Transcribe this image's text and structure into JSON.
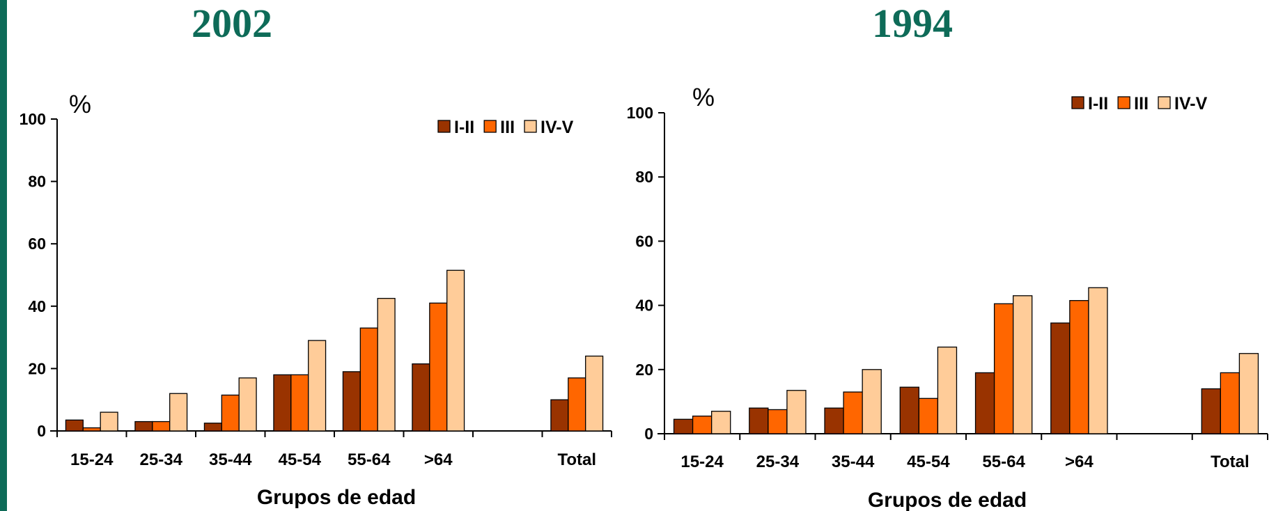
{
  "chart_data": [
    {
      "type": "bar",
      "title": "2002",
      "xlabel": "Grupos de edad",
      "ylabel": "%",
      "ylim": [
        0,
        100
      ],
      "yticks": [
        "0",
        "20",
        "40",
        "60",
        "80",
        "100"
      ],
      "categories": [
        "15-24",
        "25-34",
        "35-44",
        "45-54",
        "55-64",
        ">64",
        "",
        "Total"
      ],
      "legend_position": "top-right",
      "grid": false,
      "series": [
        {
          "name": "I-II",
          "color": "#993300",
          "values": [
            3.5,
            3,
            2.5,
            18,
            19,
            21.5,
            null,
            10
          ]
        },
        {
          "name": "III",
          "color": "#ff6600",
          "values": [
            1,
            3,
            11.5,
            18,
            33,
            41,
            null,
            17
          ]
        },
        {
          "name": "IV-V",
          "color": "#ffcc99",
          "values": [
            6,
            12,
            17,
            29,
            42.5,
            51.5,
            null,
            24
          ]
        }
      ]
    },
    {
      "type": "bar",
      "title": "1994",
      "xlabel": "Grupos de edad",
      "ylabel": "%",
      "ylim": [
        0,
        100
      ],
      "yticks": [
        "0",
        "20",
        "40",
        "60",
        "80",
        "100"
      ],
      "categories": [
        "15-24",
        "25-34",
        "35-44",
        "45-54",
        "55-64",
        ">64",
        "",
        "Total"
      ],
      "legend_position": "top-right",
      "grid": false,
      "series": [
        {
          "name": "I-II",
          "color": "#993300",
          "values": [
            4.5,
            8,
            8,
            14.5,
            19,
            34.5,
            null,
            14
          ]
        },
        {
          "name": "III",
          "color": "#ff6600",
          "values": [
            5.5,
            7.5,
            13,
            11,
            40.5,
            41.5,
            null,
            19
          ]
        },
        {
          "name": "IV-V",
          "color": "#ffcc99",
          "values": [
            7,
            13.5,
            20,
            27,
            43,
            45.5,
            null,
            25
          ]
        }
      ]
    }
  ]
}
